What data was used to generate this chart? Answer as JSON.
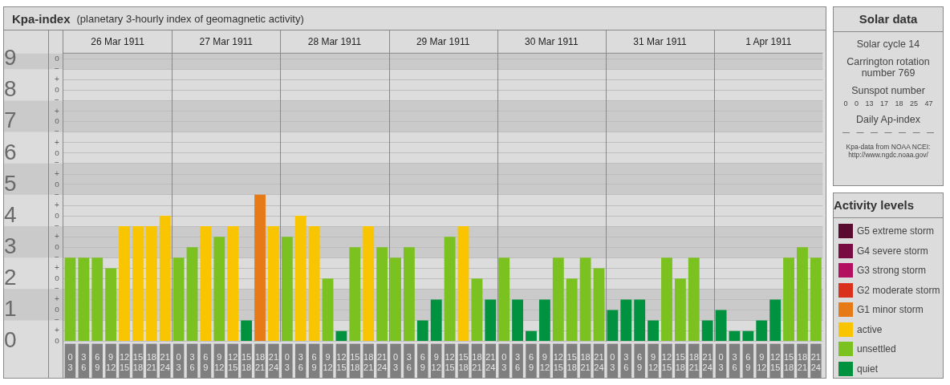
{
  "chart_data": [
    {
      "type": "bar",
      "title": "Kpa-index",
      "subtitle": "(planetary 3-hourly index of geomagnetic activity)",
      "categories": [
        "0\n3",
        "3\n6",
        "6\n9",
        "9\n12",
        "12\n15",
        "15\n18",
        "18\n21",
        "21\n24",
        "0\n3",
        "3\n6",
        "6\n9",
        "9\n12",
        "12\n15",
        "15\n18",
        "18\n21",
        "21\n24",
        "0\n3",
        "3\n6",
        "6\n9",
        "9\n12",
        "12\n15",
        "15\n18",
        "18\n21",
        "21\n24",
        "0\n3",
        "3\n6",
        "6\n9",
        "9\n12",
        "12\n15",
        "15\n18",
        "18\n21",
        "21\n24",
        "0\n3",
        "3\n6",
        "6\n9",
        "9\n12",
        "12\n15",
        "15\n18",
        "18\n21",
        "21\n24",
        "0\n3",
        "3\n6",
        "6\n9",
        "9\n12",
        "12\n15",
        "15\n18",
        "18\n21",
        "21\n24",
        "0\n3",
        "3\n6",
        "6\n9",
        "9\n12",
        "12\n15",
        "15\n18",
        "18\n21",
        "21\n24"
      ],
      "stacked": true,
      "series": [
        {
          "name": "G5 extreme storm",
          "color": "#5a0a30",
          "values": [
            null,
            null,
            null,
            null,
            null,
            null,
            null,
            null,
            null,
            null,
            null,
            null,
            null,
            null,
            null,
            null,
            null,
            null,
            null,
            null,
            null,
            null,
            null,
            null,
            null,
            null,
            null,
            null,
            null,
            null,
            null,
            null,
            null,
            null,
            null,
            null,
            null,
            null,
            null,
            null,
            null,
            null,
            null,
            null,
            null,
            null,
            null,
            null,
            null,
            null,
            null,
            null,
            null,
            null,
            null,
            null
          ]
        },
        {
          "name": "G4 severe storm",
          "color": "#7a0a42",
          "values": [
            null,
            null,
            null,
            null,
            null,
            null,
            null,
            null,
            null,
            null,
            null,
            null,
            null,
            null,
            null,
            null,
            null,
            null,
            null,
            null,
            null,
            null,
            null,
            null,
            null,
            null,
            null,
            null,
            null,
            null,
            null,
            null,
            null,
            null,
            null,
            null,
            null,
            null,
            null,
            null,
            null,
            null,
            null,
            null,
            null,
            null,
            null,
            null,
            null,
            null,
            null,
            null,
            null,
            null,
            null,
            null
          ]
        },
        {
          "name": "G3 strong storm",
          "color": "#b3105f",
          "values": [
            null,
            null,
            null,
            null,
            null,
            null,
            null,
            null,
            null,
            null,
            null,
            null,
            null,
            null,
            null,
            null,
            null,
            null,
            null,
            null,
            null,
            null,
            null,
            null,
            null,
            null,
            null,
            null,
            null,
            null,
            null,
            null,
            null,
            null,
            null,
            null,
            null,
            null,
            null,
            null,
            null,
            null,
            null,
            null,
            null,
            null,
            null,
            null,
            null,
            null,
            null,
            null,
            null,
            null,
            null,
            null
          ]
        },
        {
          "name": "G2 moderate storm",
          "color": "#d9311c",
          "values": [
            null,
            null,
            null,
            null,
            null,
            null,
            null,
            null,
            null,
            null,
            null,
            null,
            null,
            null,
            null,
            null,
            null,
            null,
            null,
            null,
            null,
            null,
            null,
            null,
            null,
            null,
            null,
            null,
            null,
            null,
            null,
            null,
            null,
            null,
            null,
            null,
            null,
            null,
            null,
            null,
            null,
            null,
            null,
            null,
            null,
            null,
            null,
            null,
            null,
            null,
            null,
            null,
            null,
            null,
            null,
            null
          ]
        },
        {
          "name": "G1 minor storm",
          "color": "#e57a17",
          "values": [
            null,
            null,
            null,
            null,
            null,
            null,
            null,
            null,
            null,
            null,
            null,
            null,
            null,
            null,
            4.67,
            null,
            null,
            null,
            null,
            null,
            null,
            null,
            null,
            null,
            null,
            null,
            null,
            null,
            null,
            null,
            null,
            null,
            null,
            null,
            null,
            null,
            null,
            null,
            null,
            null,
            null,
            null,
            null,
            null,
            null,
            null,
            null,
            null,
            null,
            null,
            null,
            null,
            null,
            null,
            null,
            null
          ]
        },
        {
          "name": "active",
          "color": "#f8c500",
          "values": [
            null,
            null,
            null,
            null,
            3.67,
            3.67,
            3.67,
            4,
            null,
            null,
            3.67,
            null,
            3.67,
            null,
            null,
            3.67,
            null,
            4,
            3.67,
            null,
            null,
            null,
            3.67,
            null,
            null,
            null,
            null,
            null,
            null,
            3.67,
            null,
            null,
            null,
            null,
            null,
            null,
            null,
            null,
            null,
            null,
            null,
            null,
            null,
            null,
            null,
            null,
            null,
            null,
            null,
            null,
            null,
            null,
            null,
            null,
            null,
            null
          ]
        },
        {
          "name": "unsettled",
          "color": "#7bc120",
          "values": [
            2.67,
            2.67,
            2.67,
            2.33,
            null,
            null,
            null,
            null,
            2.67,
            3,
            null,
            3.33,
            null,
            null,
            null,
            null,
            3.33,
            null,
            null,
            2,
            null,
            3,
            null,
            3,
            2.67,
            3,
            null,
            null,
            3.33,
            null,
            2,
            null,
            2.67,
            null,
            null,
            null,
            2.67,
            2,
            2.67,
            2.33,
            null,
            null,
            null,
            null,
            2.67,
            2,
            2.67,
            null,
            null,
            null,
            null,
            null,
            null,
            2.67,
            3,
            2.67
          ]
        },
        {
          "name": "quiet",
          "color": "#00923f",
          "values": [
            null,
            null,
            null,
            null,
            null,
            null,
            null,
            null,
            null,
            null,
            null,
            null,
            null,
            0.67,
            null,
            null,
            null,
            null,
            null,
            null,
            0.33,
            null,
            null,
            null,
            null,
            null,
            0.67,
            1.33,
            null,
            null,
            null,
            1.33,
            null,
            1.33,
            0.33,
            1.33,
            null,
            null,
            null,
            null,
            1,
            1.33,
            1.33,
            0.67,
            null,
            null,
            null,
            0.67,
            1,
            0.33,
            0.33,
            0.67,
            1.33,
            null,
            null,
            null
          ]
        }
      ],
      "ylim": [
        0,
        9.17
      ],
      "yticks": [
        0,
        {
          "value": 0.33,
          "label": null
        },
        {
          "value": 0.67,
          "label": null
        },
        1,
        {
          "value": 1.33,
          "label": null
        },
        {
          "value": 1.67,
          "label": null
        },
        2,
        {
          "value": 2.33,
          "label": null
        },
        {
          "value": 2.67,
          "label": null
        },
        3,
        {
          "value": 3.33,
          "label": null
        },
        {
          "value": 3.67,
          "label": null
        },
        4,
        {
          "value": 4.33,
          "label": null
        },
        {
          "value": 4.67,
          "label": null
        },
        5,
        {
          "value": 5.33,
          "label": null
        },
        {
          "value": 5.67,
          "label": null
        },
        6,
        {
          "value": 6.33,
          "label": null
        },
        {
          "value": 6.67,
          "label": null
        },
        7,
        {
          "value": 7.33,
          "label": null
        },
        {
          "value": 7.67,
          "label": null
        },
        8,
        {
          "value": 8.33,
          "label": null
        },
        {
          "value": 8.67,
          "label": null
        },
        9
      ],
      "bands": [
        {
          "axis": "y",
          "from": 0.67,
          "to": 1.67,
          "color": "#cacaca"
        },
        {
          "axis": "y",
          "from": 2.67,
          "to": 3.67,
          "color": "#cacaca"
        },
        {
          "axis": "y",
          "from": 4.67,
          "to": 5.67,
          "color": "#cacaca"
        },
        {
          "axis": "y",
          "from": 6.67,
          "to": 7.67,
          "color": "#cacaca"
        },
        {
          "axis": "y",
          "from": 8.67,
          "to": 9.17,
          "color": "#cacaca"
        }
      ],
      "grid": "y",
      "legend": "right",
      "legend_title": "Activity levels",
      "annotations": [
        "26 Mar 1911",
        "27 Mar 1911",
        "28 Mar 1911",
        "29 Mar 1911",
        "30 Mar 1911",
        "31 Mar 1911",
        "1 Apr 1911",
        "o",
        "+",
        "−",
        "o",
        "+",
        "−",
        "o",
        "+",
        "−",
        "o",
        "+",
        "−",
        "o",
        "+",
        "−",
        "o",
        "+",
        "−",
        "o",
        "+",
        "−",
        "o",
        "+",
        "−",
        "o",
        "+",
        "−",
        "o"
      ]
    },
    {
      "type": "other",
      "title": "Solar data",
      "annotations": [
        "Solar cycle 14",
        "Carrington rotation number 769",
        "Sunspot number",
        "0 0 13 17 18 25 47",
        "Daily Ap-index",
        "— — — — — — —",
        "Kpa-data from NOAA NCEI: http://www.ngdc.noaa.gov/"
      ]
    }
  ]
}
